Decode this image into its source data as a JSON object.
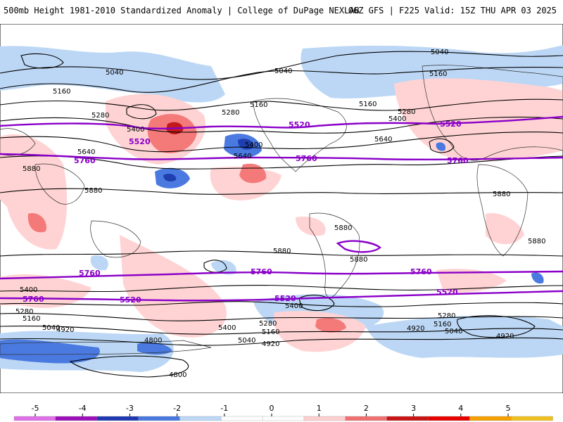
{
  "header": {
    "left": "500mb Height 1981-2010 Standardized Anomaly | College of DuPage NEXLAB",
    "right": "06Z GFS | F225 Valid: 15Z THU APR 03 2025"
  },
  "map": {
    "contour_labels": {
      "black": [
        "5040",
        "5160",
        "5280",
        "5400",
        "5640",
        "5880",
        "4920",
        "4800"
      ],
      "purple": [
        "5520",
        "5760"
      ]
    },
    "colors": {
      "neg5": "#c96bd6",
      "neg4": "#8b00a8",
      "neg3": "#1f3fb0",
      "neg2": "#4a7ae0",
      "neg1": "#bcd7f5",
      "pos1": "#ffd3d3",
      "pos2": "#f47a7a",
      "pos3": "#c21a1a",
      "pos4": "#e60000",
      "pos5": "#f0a010",
      "contour_black": "#000000",
      "contour_purple": "#8a00c8"
    }
  },
  "colorbar": {
    "ticks": [
      "-5",
      "-4",
      "-3",
      "-2",
      "-1",
      "0",
      "1",
      "2",
      "3",
      "4",
      "5"
    ],
    "colors": [
      "#e070e8",
      "#9b10b8",
      "#2038b0",
      "#4a78e0",
      "#bcd7f5",
      "#ffffff",
      "#ffffff",
      "#ffcfcf",
      "#f07070",
      "#c81414",
      "#e60000",
      "#f5a000",
      "#f0c020"
    ]
  }
}
